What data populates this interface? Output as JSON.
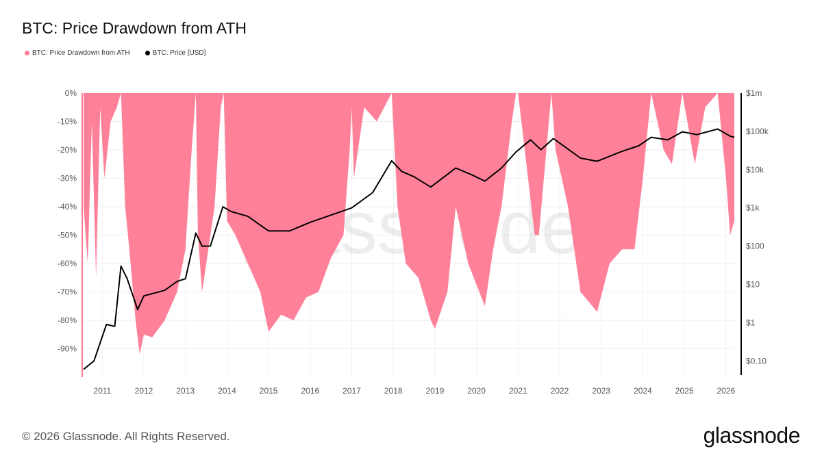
{
  "title": "BTC: Price Drawdown from ATH",
  "footer": "© 2026 Glassnode. All Rights Reserved.",
  "logo": "glassnode",
  "watermark": "glassnode",
  "chart_data": {
    "type": "area",
    "title": "BTC: Price Drawdown from ATH",
    "legend": "top-left",
    "grid": true,
    "x_ticks": [
      "2011",
      "2012",
      "2013",
      "2014",
      "2015",
      "2016",
      "2017",
      "2018",
      "2019",
      "2020",
      "2021",
      "2022",
      "2023",
      "2024",
      "2025",
      "2026"
    ],
    "xlim": [
      2010.55,
      2026.2
    ],
    "y_left": {
      "ticks": [
        "0%",
        "-10%",
        "-20%",
        "-30%",
        "-40%",
        "-50%",
        "-60%",
        "-70%",
        "-80%",
        "-90%"
      ],
      "ylim": [
        -100,
        0
      ]
    },
    "y_right": {
      "scale": "log",
      "ticks": [
        "$1m",
        "$100k",
        "$10k",
        "$1k",
        "$100",
        "$10",
        "$1",
        "$0.10"
      ],
      "ylim": [
        0.05,
        1000000
      ]
    },
    "series": [
      {
        "name": "BTC: Price Drawdown from ATH",
        "color": "#ff7a94",
        "axis": "left",
        "unit": "%",
        "points": [
          [
            2010.55,
            -40
          ],
          [
            2010.65,
            -60
          ],
          [
            2010.75,
            -10
          ],
          [
            2010.85,
            -65
          ],
          [
            2010.95,
            -5
          ],
          [
            2011.05,
            -30
          ],
          [
            2011.2,
            -10
          ],
          [
            2011.35,
            -5
          ],
          [
            2011.45,
            0
          ],
          [
            2011.55,
            -40
          ],
          [
            2011.65,
            -55
          ],
          [
            2011.8,
            -80
          ],
          [
            2011.9,
            -92
          ],
          [
            2012.0,
            -85
          ],
          [
            2012.2,
            -86
          ],
          [
            2012.5,
            -80
          ],
          [
            2012.8,
            -70
          ],
          [
            2013.0,
            -55
          ],
          [
            2013.15,
            -20
          ],
          [
            2013.25,
            0
          ],
          [
            2013.3,
            -50
          ],
          [
            2013.4,
            -70
          ],
          [
            2013.5,
            -60
          ],
          [
            2013.7,
            -40
          ],
          [
            2013.85,
            -5
          ],
          [
            2013.92,
            0
          ],
          [
            2014.0,
            -45
          ],
          [
            2014.2,
            -50
          ],
          [
            2014.5,
            -60
          ],
          [
            2014.8,
            -70
          ],
          [
            2015.0,
            -84
          ],
          [
            2015.3,
            -78
          ],
          [
            2015.6,
            -80
          ],
          [
            2015.9,
            -72
          ],
          [
            2016.2,
            -70
          ],
          [
            2016.5,
            -58
          ],
          [
            2016.8,
            -50
          ],
          [
            2016.95,
            -20
          ],
          [
            2017.0,
            -5
          ],
          [
            2017.05,
            -30
          ],
          [
            2017.3,
            -5
          ],
          [
            2017.6,
            -10
          ],
          [
            2017.96,
            0
          ],
          [
            2018.1,
            -40
          ],
          [
            2018.3,
            -60
          ],
          [
            2018.6,
            -65
          ],
          [
            2018.9,
            -80
          ],
          [
            2019.0,
            -83
          ],
          [
            2019.3,
            -70
          ],
          [
            2019.5,
            -40
          ],
          [
            2019.8,
            -60
          ],
          [
            2020.2,
            -75
          ],
          [
            2020.4,
            -55
          ],
          [
            2020.6,
            -40
          ],
          [
            2020.85,
            -10
          ],
          [
            2020.95,
            0
          ],
          [
            2021.0,
            0
          ],
          [
            2021.4,
            -50
          ],
          [
            2021.5,
            -50
          ],
          [
            2021.8,
            0
          ],
          [
            2021.9,
            -20
          ],
          [
            2022.2,
            -40
          ],
          [
            2022.5,
            -70
          ],
          [
            2022.9,
            -77
          ],
          [
            2023.2,
            -60
          ],
          [
            2023.5,
            -55
          ],
          [
            2023.8,
            -55
          ],
          [
            2024.0,
            -30
          ],
          [
            2024.2,
            0
          ],
          [
            2024.5,
            -20
          ],
          [
            2024.7,
            -25
          ],
          [
            2024.95,
            0
          ],
          [
            2025.25,
            -25
          ],
          [
            2025.5,
            -5
          ],
          [
            2025.8,
            0
          ],
          [
            2025.9,
            -15
          ],
          [
            2026.0,
            -30
          ],
          [
            2026.1,
            -50
          ],
          [
            2026.2,
            -45
          ]
        ]
      },
      {
        "name": "BTC: Price [USD]",
        "color": "#000000",
        "axis": "right",
        "unit": "USD",
        "points": [
          [
            2010.55,
            0.06
          ],
          [
            2010.8,
            0.1
          ],
          [
            2010.95,
            0.3
          ],
          [
            2011.1,
            0.9
          ],
          [
            2011.3,
            0.8
          ],
          [
            2011.45,
            30
          ],
          [
            2011.6,
            14
          ],
          [
            2011.85,
            2.2
          ],
          [
            2012.0,
            5
          ],
          [
            2012.5,
            7
          ],
          [
            2012.8,
            12
          ],
          [
            2013.0,
            14
          ],
          [
            2013.25,
            220
          ],
          [
            2013.4,
            100
          ],
          [
            2013.6,
            100
          ],
          [
            2013.9,
            1070
          ],
          [
            2014.1,
            800
          ],
          [
            2014.5,
            600
          ],
          [
            2015.0,
            250
          ],
          [
            2015.5,
            250
          ],
          [
            2016.0,
            420
          ],
          [
            2016.5,
            650
          ],
          [
            2017.0,
            1000
          ],
          [
            2017.5,
            2500
          ],
          [
            2017.96,
            17000
          ],
          [
            2018.2,
            9000
          ],
          [
            2018.5,
            6500
          ],
          [
            2018.9,
            3500
          ],
          [
            2019.5,
            11000
          ],
          [
            2019.9,
            7200
          ],
          [
            2020.2,
            5000
          ],
          [
            2020.6,
            11000
          ],
          [
            2020.95,
            29000
          ],
          [
            2021.3,
            60000
          ],
          [
            2021.55,
            33000
          ],
          [
            2021.85,
            65000
          ],
          [
            2022.5,
            20000
          ],
          [
            2022.9,
            16500
          ],
          [
            2023.5,
            30000
          ],
          [
            2023.9,
            42000
          ],
          [
            2024.2,
            70000
          ],
          [
            2024.6,
            60000
          ],
          [
            2024.95,
            97000
          ],
          [
            2025.3,
            82000
          ],
          [
            2025.8,
            115000
          ],
          [
            2026.1,
            75000
          ],
          [
            2026.2,
            70000
          ]
        ]
      }
    ]
  }
}
